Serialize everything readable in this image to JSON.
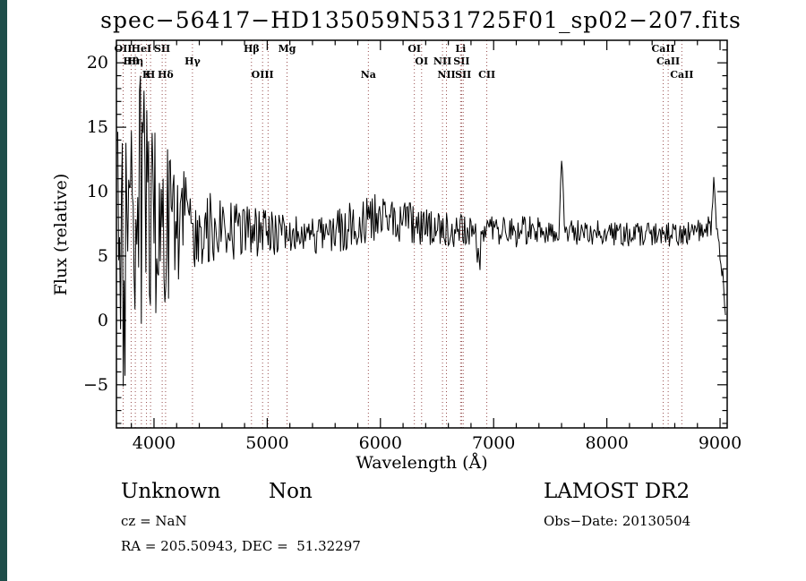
{
  "colors": {
    "background": "#ffffff",
    "left_strip": "#1f4e4a",
    "trace": "#000000",
    "line_marker": "#8b3a3a",
    "text": "#000000"
  },
  "annotations": {
    "class_label": "Unknown",
    "subclass_label": "Non",
    "survey": "LAMOST DR2",
    "cz": "cz = NaN",
    "obs_date": "Obs−Date: 20130504",
    "ra_dec": "RA = 205.50943, DEC =  51.32297"
  },
  "chart_data": {
    "type": "line",
    "title": "spec−56417−HD135059N531725F01_sp02−207.fits",
    "xlabel": "Wavelength (Å)",
    "ylabel": "Flux (relative)",
    "xlim": [
      3668,
      9063
    ],
    "ylim": [
      -8.35,
      21.75
    ],
    "xticks": [
      4000,
      5000,
      6000,
      7000,
      8000,
      9000
    ],
    "yticks": [
      -5,
      0,
      5,
      10,
      15,
      20
    ],
    "x_minor_step": 200,
    "y_minor_step": 1,
    "grid": false,
    "legend": false,
    "noise_seed": 20130504,
    "sample_step": 8,
    "spectral_lines": [
      {
        "wavelength": 3727,
        "label": "OII",
        "row": 1
      },
      {
        "wavelength": 3798,
        "label": "Hθ",
        "row": 2
      },
      {
        "wavelength": 3835,
        "label": "Hη",
        "row": 2
      },
      {
        "wavelength": 3889,
        "label": "HeI",
        "row": 1
      },
      {
        "wavelength": 3934,
        "label": "K",
        "row": 3
      },
      {
        "wavelength": 3969,
        "label": "H",
        "row": 3
      },
      {
        "wavelength": 4072,
        "label": "SII",
        "row": 1
      },
      {
        "wavelength": 4102,
        "label": "Hδ",
        "row": 3
      },
      {
        "wavelength": 4340,
        "label": "Hγ",
        "row": 2
      },
      {
        "wavelength": 4861,
        "label": "Hβ",
        "row": 1
      },
      {
        "wavelength": 4959,
        "label": "OIII",
        "row": 3
      },
      {
        "wavelength": 5007,
        "label": "",
        "row": 3
      },
      {
        "wavelength": 5175,
        "label": "Mg",
        "row": 1
      },
      {
        "wavelength": 5893,
        "label": "Na",
        "row": 3
      },
      {
        "wavelength": 6300,
        "label": "OI",
        "row": 1
      },
      {
        "wavelength": 6364,
        "label": "OI",
        "row": 2
      },
      {
        "wavelength": 6548,
        "label": "NII",
        "row": 2
      },
      {
        "wavelength": 6583,
        "label": "NII",
        "row": 3
      },
      {
        "wavelength": 6708,
        "label": "Li",
        "row": 1
      },
      {
        "wavelength": 6717,
        "label": "SII",
        "row": 2
      },
      {
        "wavelength": 6731,
        "label": "SII",
        "row": 3
      },
      {
        "wavelength": 6940,
        "label": "CII",
        "row": 3
      },
      {
        "wavelength": 8498,
        "label": "CaII",
        "row": 1
      },
      {
        "wavelength": 8542,
        "label": "CaII",
        "row": 2
      },
      {
        "wavelength": 8662,
        "label": "CaII",
        "row": 3
      }
    ],
    "flux_profile": [
      [
        3680,
        5.0,
        13.5
      ],
      [
        3760,
        7.5,
        13.5
      ],
      [
        3840,
        8.0,
        12.0
      ],
      [
        3920,
        8.5,
        10.0
      ],
      [
        4000,
        8.0,
        8.0
      ],
      [
        4080,
        7.5,
        6.5
      ],
      [
        4160,
        7.5,
        5.5
      ],
      [
        4240,
        7.5,
        4.5
      ],
      [
        4320,
        7.3,
        3.8
      ],
      [
        4420,
        7.2,
        3.2
      ],
      [
        4560,
        7.0,
        2.7
      ],
      [
        4700,
        7.0,
        2.4
      ],
      [
        4850,
        6.9,
        2.1
      ],
      [
        5000,
        6.7,
        1.8
      ],
      [
        5150,
        6.6,
        1.7
      ],
      [
        5300,
        6.5,
        1.5
      ],
      [
        5450,
        6.5,
        1.5
      ],
      [
        5600,
        6.8,
        1.7
      ],
      [
        5750,
        7.4,
        1.9
      ],
      [
        5900,
        8.1,
        2.0
      ],
      [
        6000,
        8.2,
        1.9
      ],
      [
        6100,
        7.9,
        1.7
      ],
      [
        6250,
        7.6,
        1.6
      ],
      [
        6400,
        7.3,
        1.5
      ],
      [
        6550,
        7.1,
        1.4
      ],
      [
        6700,
        7.0,
        1.4
      ],
      [
        6820,
        6.7,
        1.3
      ],
      [
        6880,
        6.4,
        1.4
      ],
      [
        6960,
        6.9,
        1.2
      ],
      [
        7100,
        7.0,
        1.2
      ],
      [
        7250,
        7.0,
        1.1
      ],
      [
        7400,
        7.0,
        1.05
      ],
      [
        7550,
        7.0,
        1.0
      ],
      [
        7700,
        6.9,
        1.0
      ],
      [
        7850,
        6.8,
        1.0
      ],
      [
        8000,
        6.8,
        0.95
      ],
      [
        8150,
        6.7,
        0.95
      ],
      [
        8300,
        6.6,
        0.95
      ],
      [
        8450,
        6.6,
        1.0
      ],
      [
        8600,
        6.7,
        0.95
      ],
      [
        8750,
        6.8,
        0.9
      ],
      [
        8880,
        7.1,
        0.85
      ],
      [
        8940,
        7.6,
        0.9
      ],
      [
        8990,
        6.5,
        1.0
      ],
      [
        9015,
        4.5,
        1.0
      ],
      [
        9040,
        1.2,
        0.6
      ],
      [
        9055,
        0.4,
        0.4
      ]
    ],
    "emission_spikes": [
      {
        "center": 7602,
        "height": 4.8,
        "sigma": 11
      },
      {
        "center": 8948,
        "height": 3.0,
        "sigma": 9
      }
    ],
    "absorption_dips": [
      {
        "center": 6868,
        "depth": 1.6,
        "sigma": 16
      },
      {
        "center": 7180,
        "depth": 0.8,
        "sigma": 12
      }
    ]
  }
}
